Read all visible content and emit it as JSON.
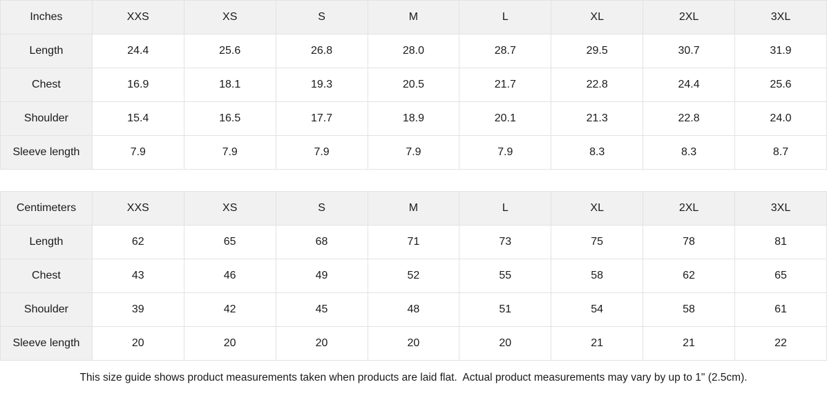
{
  "colors": {
    "header_background": "#f1f1f1",
    "cell_background": "#ffffff",
    "border": "#e2e2e2",
    "text": "#1a1a1a"
  },
  "tables": [
    {
      "unit_label": "Inches",
      "sizes": [
        "XXS",
        "XS",
        "S",
        "M",
        "L",
        "XL",
        "2XL",
        "3XL"
      ],
      "rows": [
        {
          "label": "Length",
          "values": [
            "24.4",
            "25.6",
            "26.8",
            "28.0",
            "28.7",
            "29.5",
            "30.7",
            "31.9"
          ]
        },
        {
          "label": "Chest",
          "values": [
            "16.9",
            "18.1",
            "19.3",
            "20.5",
            "21.7",
            "22.8",
            "24.4",
            "25.6"
          ]
        },
        {
          "label": "Shoulder",
          "values": [
            "15.4",
            "16.5",
            "17.7",
            "18.9",
            "20.1",
            "21.3",
            "22.8",
            "24.0"
          ]
        },
        {
          "label": "Sleeve length",
          "values": [
            "7.9",
            "7.9",
            "7.9",
            "7.9",
            "7.9",
            "8.3",
            "8.3",
            "8.7"
          ]
        }
      ]
    },
    {
      "unit_label": "Centimeters",
      "sizes": [
        "XXS",
        "XS",
        "S",
        "M",
        "L",
        "XL",
        "2XL",
        "3XL"
      ],
      "rows": [
        {
          "label": "Length",
          "values": [
            "62",
            "65",
            "68",
            "71",
            "73",
            "75",
            "78",
            "81"
          ]
        },
        {
          "label": "Chest",
          "values": [
            "43",
            "46",
            "49",
            "52",
            "55",
            "58",
            "62",
            "65"
          ]
        },
        {
          "label": "Shoulder",
          "values": [
            "39",
            "42",
            "45",
            "48",
            "51",
            "54",
            "58",
            "61"
          ]
        },
        {
          "label": "Sleeve length",
          "values": [
            "20",
            "20",
            "20",
            "20",
            "20",
            "21",
            "21",
            "22"
          ]
        }
      ]
    }
  ],
  "footer_note": "This size guide shows product measurements taken when products are laid flat.  Actual product measurements may vary by up to 1\" (2.5cm)."
}
